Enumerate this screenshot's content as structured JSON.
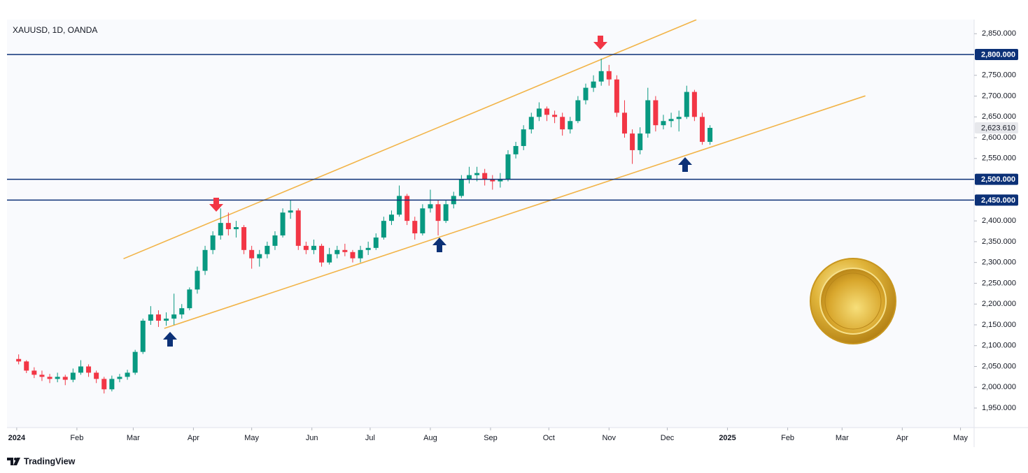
{
  "chart_data": {
    "type": "candlestick",
    "title": "XAUUSD, 1D, OANDA",
    "x": [
      1,
      5,
      9,
      13,
      17,
      21,
      25,
      29,
      33,
      37,
      41,
      45,
      49,
      53,
      57,
      61,
      65,
      69,
      73,
      77,
      81,
      85,
      89,
      93,
      97,
      101,
      105,
      109,
      113,
      117,
      121,
      125,
      129,
      133,
      137,
      141,
      145,
      149,
      153,
      157,
      161,
      165,
      169,
      173,
      177,
      181,
      185,
      189,
      193,
      197,
      201,
      205,
      209,
      213,
      217,
      221,
      225,
      229,
      233,
      237,
      241,
      245,
      249,
      253,
      257,
      261,
      265,
      269,
      273,
      277,
      281,
      285,
      289,
      293,
      297,
      301,
      305,
      309,
      313,
      317,
      321,
      325,
      329,
      333,
      337,
      341,
      345,
      349,
      353,
      357
    ],
    "open": [
      2068,
      2062,
      2040,
      2030,
      2025,
      2020,
      2025,
      2018,
      2035,
      2050,
      2035,
      2020,
      1995,
      2020,
      2025,
      2035,
      2085,
      2160,
      2175,
      2160,
      2165,
      2175,
      2190,
      2235,
      2280,
      2330,
      2365,
      2395,
      2380,
      2385,
      2330,
      2310,
      2320,
      2340,
      2365,
      2420,
      2425,
      2340,
      2330,
      2340,
      2300,
      2320,
      2330,
      2325,
      2310,
      2330,
      2335,
      2360,
      2400,
      2415,
      2460,
      2400,
      2370,
      2430,
      2440,
      2400,
      2440,
      2460,
      2500,
      2510,
      2515,
      2500,
      2495,
      2500,
      2560,
      2580,
      2620,
      2650,
      2670,
      2655,
      2650,
      2620,
      2640,
      2690,
      2720,
      2735,
      2760,
      2740,
      2660,
      2610,
      2570,
      2610,
      2690,
      2630,
      2640,
      2645,
      2650,
      2710,
      2650,
      2590
    ],
    "high": [
      2079,
      2065,
      2048,
      2040,
      2032,
      2035,
      2030,
      2045,
      2065,
      2055,
      2040,
      2025,
      2028,
      2032,
      2042,
      2090,
      2165,
      2195,
      2185,
      2180,
      2225,
      2200,
      2240,
      2290,
      2340,
      2375,
      2430,
      2420,
      2400,
      2390,
      2340,
      2330,
      2350,
      2375,
      2430,
      2450,
      2430,
      2350,
      2355,
      2345,
      2335,
      2340,
      2345,
      2330,
      2340,
      2350,
      2370,
      2410,
      2425,
      2485,
      2465,
      2410,
      2440,
      2475,
      2450,
      2450,
      2470,
      2510,
      2530,
      2530,
      2525,
      2510,
      2515,
      2570,
      2590,
      2630,
      2660,
      2685,
      2675,
      2665,
      2660,
      2650,
      2700,
      2730,
      2750,
      2790,
      2775,
      2750,
      2690,
      2620,
      2625,
      2720,
      2700,
      2655,
      2660,
      2665,
      2725,
      2715,
      2660,
      2630
    ],
    "low": [
      2055,
      2034,
      2022,
      2015,
      2010,
      2012,
      2005,
      2012,
      2030,
      2025,
      2010,
      1985,
      1990,
      2012,
      2018,
      2030,
      2080,
      2150,
      2145,
      2148,
      2150,
      2165,
      2185,
      2225,
      2270,
      2320,
      2355,
      2365,
      2360,
      2320,
      2285,
      2290,
      2310,
      2330,
      2360,
      2405,
      2330,
      2320,
      2320,
      2290,
      2295,
      2310,
      2315,
      2300,
      2300,
      2318,
      2330,
      2355,
      2390,
      2410,
      2390,
      2355,
      2365,
      2420,
      2365,
      2395,
      2430,
      2455,
      2490,
      2495,
      2485,
      2475,
      2480,
      2495,
      2550,
      2570,
      2610,
      2640,
      2640,
      2635,
      2605,
      2610,
      2635,
      2680,
      2710,
      2725,
      2725,
      2650,
      2600,
      2537,
      2560,
      2600,
      2615,
      2620,
      2625,
      2615,
      2645,
      2640,
      2583,
      2583
    ],
    "close": [
      2062,
      2040,
      2030,
      2025,
      2020,
      2025,
      2018,
      2035,
      2050,
      2035,
      2020,
      1995,
      2020,
      2025,
      2035,
      2085,
      2160,
      2175,
      2160,
      2165,
      2175,
      2190,
      2235,
      2280,
      2330,
      2365,
      2395,
      2380,
      2385,
      2330,
      2310,
      2320,
      2340,
      2365,
      2420,
      2425,
      2340,
      2330,
      2340,
      2300,
      2320,
      2330,
      2325,
      2310,
      2330,
      2335,
      2360,
      2400,
      2415,
      2460,
      2400,
      2370,
      2430,
      2440,
      2400,
      2440,
      2460,
      2500,
      2510,
      2515,
      2500,
      2495,
      2500,
      2560,
      2580,
      2620,
      2650,
      2670,
      2655,
      2650,
      2620,
      2640,
      2690,
      2720,
      2735,
      2760,
      2740,
      2660,
      2610,
      2570,
      2610,
      2690,
      2630,
      2640,
      2645,
      2650,
      2710,
      2650,
      2590,
      2623.61
    ],
    "up_color": "#089981",
    "down_color": "#f23645",
    "xlim": [
      -5,
      493
    ],
    "xticks": [
      {
        "value": 0,
        "label": "2024"
      },
      {
        "value": 31,
        "label": "Feb"
      },
      {
        "value": 60,
        "label": "Mar"
      },
      {
        "value": 91,
        "label": "Apr"
      },
      {
        "value": 121,
        "label": "May"
      },
      {
        "value": 152,
        "label": "Jun"
      },
      {
        "value": 182,
        "label": "Jul"
      },
      {
        "value": 213,
        "label": "Aug"
      },
      {
        "value": 244,
        "label": "Sep"
      },
      {
        "value": 274,
        "label": "Oct"
      },
      {
        "value": 305,
        "label": "Nov"
      },
      {
        "value": 335,
        "label": "Dec"
      },
      {
        "value": 366,
        "label": "2025"
      },
      {
        "value": 397,
        "label": "Feb"
      },
      {
        "value": 425,
        "label": "Mar"
      },
      {
        "value": 456,
        "label": "Apr"
      },
      {
        "value": 486,
        "label": "May"
      }
    ],
    "ylim": [
      1903,
      2884
    ],
    "yticks": [
      {
        "value": 1950,
        "label": "1,950.000"
      },
      {
        "value": 2000,
        "label": "2,000.000"
      },
      {
        "value": 2050,
        "label": "2,050.000"
      },
      {
        "value": 2100,
        "label": "2,100.000"
      },
      {
        "value": 2150,
        "label": "2,150.000"
      },
      {
        "value": 2200,
        "label": "2,200.000"
      },
      {
        "value": 2250,
        "label": "2,250.000"
      },
      {
        "value": 2300,
        "label": "2,300.000"
      },
      {
        "value": 2350,
        "label": "2,350.000"
      },
      {
        "value": 2400,
        "label": "2,400.000"
      },
      {
        "value": 2550,
        "label": "2,550.000"
      },
      {
        "value": 2600,
        "label": "2,600.000"
      },
      {
        "value": 2650,
        "label": "2,650.000"
      },
      {
        "value": 2700,
        "label": "2,700.000"
      },
      {
        "value": 2750,
        "label": "2,750.000"
      },
      {
        "value": 2850,
        "label": "2,850.000"
      }
    ],
    "levels": [
      {
        "value": 2800,
        "label": "2,800.000"
      },
      {
        "value": 2500,
        "label": "2,500.000"
      },
      {
        "value": 2450,
        "label": "2,450.000"
      }
    ],
    "level_color": "#0c3177",
    "last_price": {
      "value": 2623.61,
      "label": "2,623.610"
    },
    "trendlines": [
      {
        "x": [
          55,
          350
        ],
        "y": [
          2309,
          2883.6
        ]
      },
      {
        "x": [
          76,
          437
        ],
        "y": [
          2141.5,
          2700.6
        ]
      }
    ],
    "trendline_color": "#f2b448"
  },
  "footer": {
    "brand": "TradingView"
  }
}
